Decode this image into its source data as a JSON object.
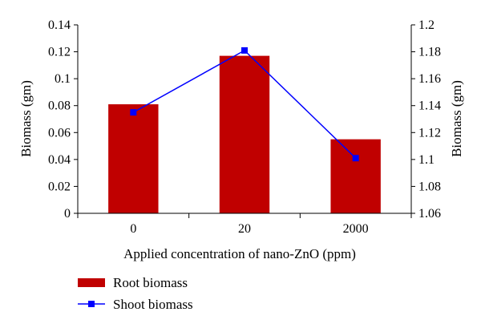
{
  "chart_data": {
    "type": "bar+line",
    "categories": [
      "0",
      "20",
      "2000"
    ],
    "xlabel": "Applied concentration of nano-ZnO (ppm)",
    "ylabel_left": "Biomass (gm)",
    "ylabel_right": "Biomass (gm)",
    "ylim_left": [
      0,
      0.14
    ],
    "ylim_right": [
      1.06,
      1.2
    ],
    "yticks_left": [
      "0",
      "0.02",
      "0.04",
      "0.06",
      "0.08",
      "0.1",
      "0.12",
      "0.14"
    ],
    "yticks_right": [
      "1.06",
      "1.08",
      "1.1",
      "1.12",
      "1.14",
      "1.16",
      "1.18",
      "1.2"
    ],
    "grid": false,
    "legend_position": "bottom-left",
    "series": [
      {
        "name": "Root biomass",
        "type": "bar",
        "axis": "left",
        "color": "#c00000",
        "values": [
          0.081,
          0.117,
          0.055
        ]
      },
      {
        "name": "Shoot biomass",
        "type": "line",
        "axis": "right",
        "color": "#0000ff",
        "marker": "square",
        "values": [
          1.135,
          1.181,
          1.101
        ]
      }
    ]
  }
}
